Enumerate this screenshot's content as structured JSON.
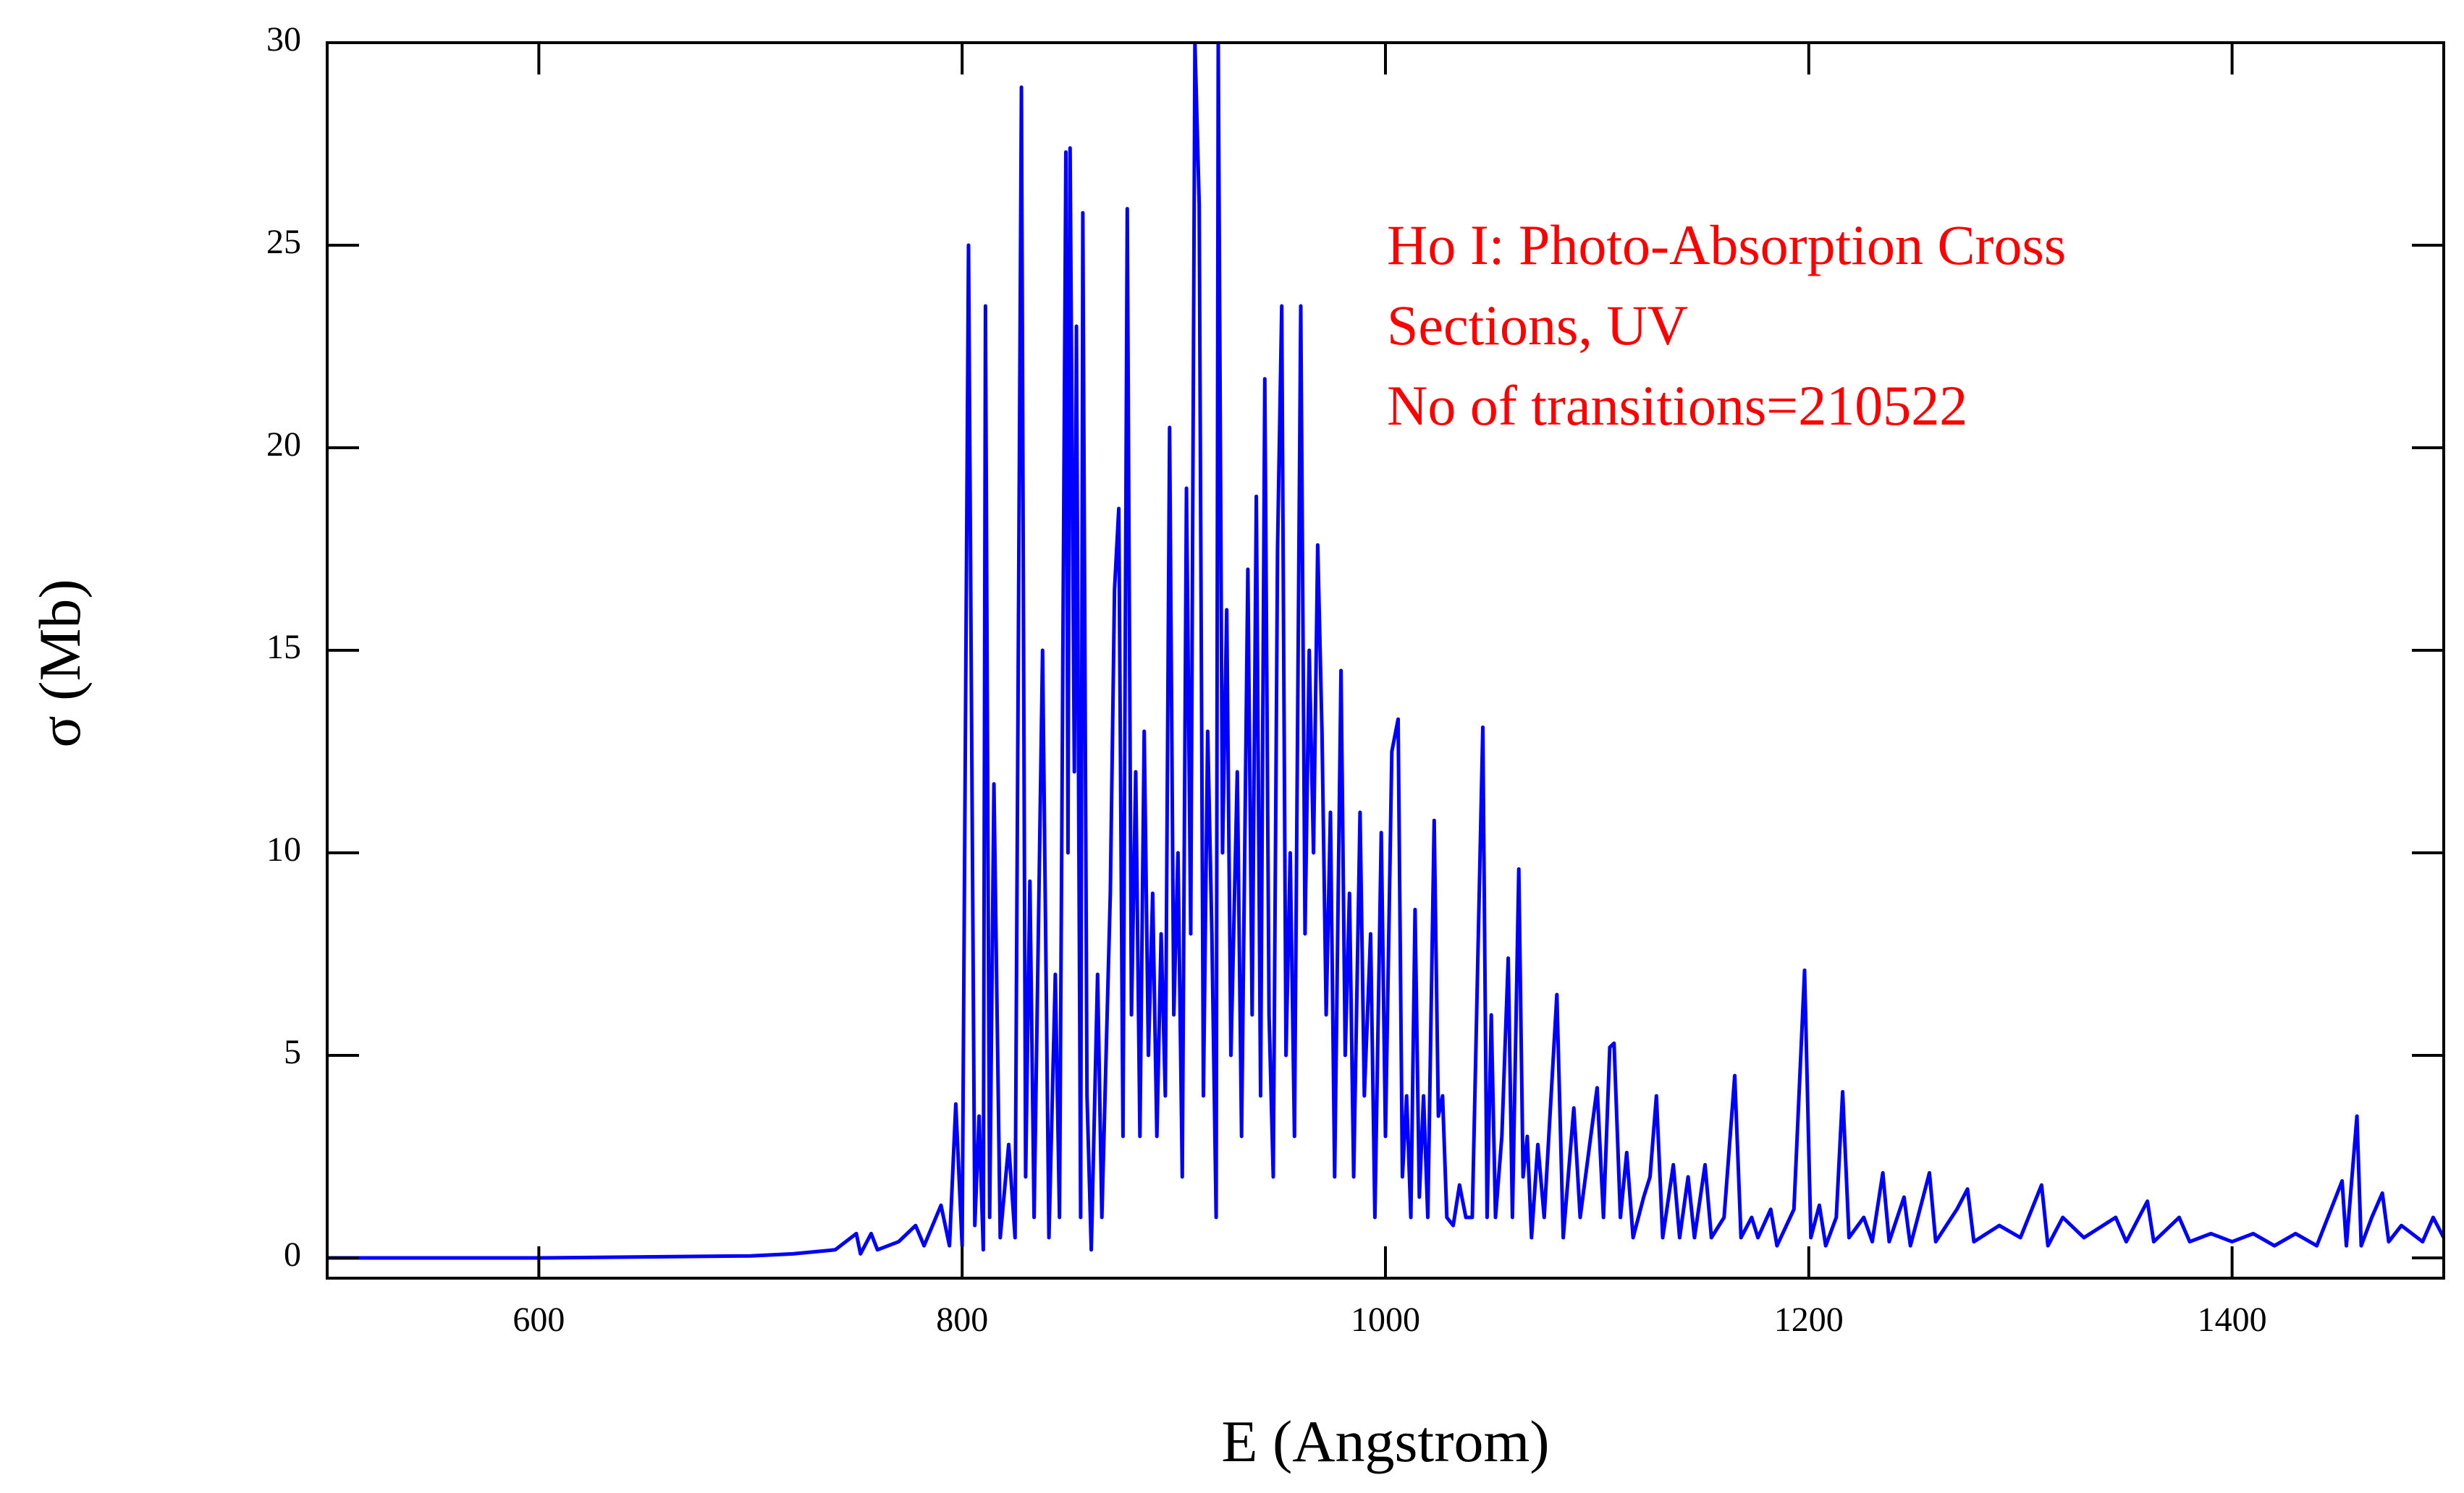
{
  "chart_data": {
    "type": "line",
    "xlabel": "E (Angstrom)",
    "ylabel": "σ (Mb)",
    "annotation": [
      "Ho I: Photo-Absorption Cross",
      "Sections, UV",
      "No of transitions=210522"
    ],
    "xlim": [
      500,
      1500
    ],
    "ylim": [
      -0.5,
      30
    ],
    "xticks": [
      600,
      800,
      1000,
      1200,
      1400
    ],
    "yticks": [
      0,
      5,
      10,
      15,
      20,
      25,
      30
    ],
    "series": [
      {
        "color": "#0000ff",
        "x": [
          500,
          600,
          700,
          720,
          740,
          750,
          752,
          757,
          760,
          770,
          778,
          782,
          790,
          794,
          797,
          800,
          803,
          806,
          808,
          810,
          811,
          813,
          815,
          818,
          822,
          825,
          828,
          830,
          832,
          834,
          838,
          841,
          844,
          846,
          849,
          850,
          851,
          853,
          854,
          856,
          857,
          859,
          861,
          864,
          866,
          870,
          872,
          874,
          876,
          878,
          880,
          882,
          884,
          886,
          888,
          890,
          892,
          894,
          896,
          898,
          900,
          902,
          904,
          906,
          908,
          910,
          912,
          914,
          916,
          918,
          920,
          921,
          923,
          925,
          927,
          930,
          932,
          935,
          937,
          939,
          941,
          943,
          945,
          947,
          949,
          951,
          953,
          955,
          957,
          960,
          962,
          964,
          966,
          968,
          970,
          972,
          974,
          976,
          979,
          981,
          983,
          985,
          988,
          990,
          993,
          995,
          998,
          1000,
          1003,
          1006,
          1008,
          1010,
          1012,
          1014,
          1016,
          1018,
          1020,
          1023,
          1025,
          1027,
          1029,
          1032,
          1035,
          1038,
          1041,
          1046,
          1048,
          1050,
          1052,
          1055,
          1058,
          1060,
          1063,
          1065,
          1067,
          1069,
          1072,
          1075,
          1081,
          1084,
          1089,
          1092,
          1100,
          1103,
          1106,
          1108,
          1111,
          1114,
          1117,
          1122,
          1125,
          1128,
          1131,
          1136,
          1139,
          1143,
          1146,
          1151,
          1154,
          1160,
          1165,
          1168,
          1173,
          1176,
          1182,
          1185,
          1193,
          1198,
          1201,
          1205,
          1208,
          1213,
          1216,
          1219,
          1226,
          1230,
          1235,
          1238,
          1245,
          1248,
          1257,
          1260,
          1270,
          1275,
          1278,
          1290,
          1300,
          1310,
          1313,
          1320,
          1330,
          1345,
          1350,
          1360,
          1363,
          1375,
          1380,
          1390,
          1400,
          1410,
          1420,
          1430,
          1440,
          1452,
          1454,
          1459,
          1461,
          1466,
          1471,
          1474,
          1480,
          1490,
          1495,
          1500
        ],
        "values": [
          0,
          0,
          0.05,
          0.1,
          0.2,
          0.6,
          0.1,
          0.6,
          0.2,
          0.4,
          0.8,
          0.3,
          1.3,
          0.3,
          3.8,
          0.3,
          25,
          0.8,
          3.5,
          0.2,
          23.5,
          1,
          11.7,
          0.5,
          2.8,
          0.5,
          28.9,
          2,
          9.3,
          1,
          15,
          0.5,
          7,
          1,
          27.3,
          10,
          27.4,
          12,
          23,
          1,
          25.8,
          4,
          0.2,
          7,
          1,
          9,
          16.5,
          18.5,
          3,
          25.9,
          6,
          12,
          3,
          13,
          5,
          9,
          3,
          8,
          4,
          20.5,
          6,
          10,
          2,
          19,
          8,
          30,
          26,
          4,
          13,
          8,
          1,
          30,
          10,
          16,
          5,
          12,
          3,
          17,
          6,
          18.8,
          4,
          21.7,
          6,
          2,
          17.5,
          23.5,
          5,
          10,
          3,
          23.5,
          8,
          15,
          10,
          17.6,
          13,
          6,
          11,
          2,
          14.5,
          5,
          9,
          2,
          11,
          4,
          8,
          1,
          10.5,
          3,
          12.5,
          13.3,
          2,
          4,
          1,
          8.6,
          1.5,
          4,
          1,
          10.8,
          3.5,
          4,
          1,
          0.8,
          1.8,
          1,
          1,
          13.1,
          1,
          6,
          1,
          3,
          7.4,
          1,
          9.6,
          2,
          3,
          0.5,
          2.8,
          1,
          6.5,
          0.5,
          3.7,
          1,
          4.2,
          1,
          5.2,
          5.3,
          1,
          2.6,
          0.5,
          1.5,
          2,
          4,
          0.5,
          2.3,
          0.5,
          2,
          0.5,
          2.3,
          0.5,
          1,
          4.5,
          0.5,
          1,
          0.5,
          1.2,
          0.3,
          1.2,
          7.1,
          0.5,
          1.3,
          0.3,
          1,
          4.1,
          0.5,
          1,
          0.4,
          2.1,
          0.4,
          1.5,
          0.3,
          2.1,
          0.4,
          1.2,
          1.7,
          0.4,
          0.8,
          0.5,
          1.8,
          0.3,
          1,
          0.5,
          1,
          0.4,
          1.4,
          0.4,
          1,
          0.4,
          0.6,
          0.4,
          0.6,
          0.3,
          0.6,
          0.3,
          1.9,
          0.3,
          3.5,
          0.3,
          1,
          1.6,
          0.4,
          0.8,
          0.4,
          1,
          0.5
        ]
      }
    ]
  }
}
